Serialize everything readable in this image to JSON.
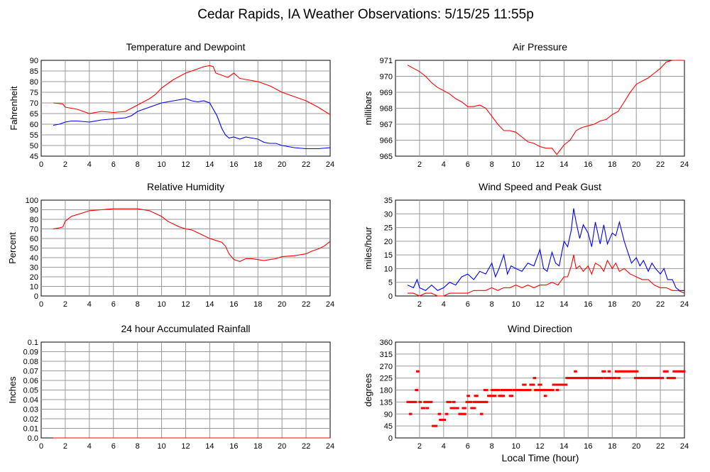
{
  "page_title": "Cedar Rapids, IA Weather Observations: 5/15/25 11:55p",
  "x_axis_label": "Local Time (hour)",
  "x_ticks": [
    "0",
    "2",
    "4",
    "6",
    "8",
    "10",
    "12",
    "14",
    "16",
    "18",
    "20",
    "22",
    "24"
  ],
  "x_ticks_no_zero": [
    "2",
    "4",
    "6",
    "8",
    "10",
    "12",
    "14",
    "16",
    "18",
    "20",
    "22",
    "24"
  ],
  "chart_data": [
    {
      "id": "temp",
      "type": "line",
      "title": "Temperature and Dewpoint",
      "ylabel": "Fahrenheit",
      "xlim": [
        0,
        24
      ],
      "ylim": [
        45,
        90
      ],
      "y_ticks": [
        45,
        50,
        55,
        60,
        65,
        70,
        75,
        80,
        85,
        90
      ],
      "y_tick_labels": [
        "45",
        "50",
        "55",
        "60",
        "65",
        "70",
        "75",
        "80",
        "85",
        "90"
      ],
      "x_labels_from_zero": true,
      "grid": true,
      "series": [
        {
          "color": "#ff0000",
          "x": [
            1,
            1.8,
            2,
            3,
            3.5,
            4,
            5,
            6,
            7,
            7.5,
            8,
            8.5,
            9,
            9.5,
            10,
            10.5,
            11,
            11.5,
            12,
            12.5,
            13,
            13.5,
            14,
            14.3,
            14.5,
            15,
            15.5,
            16,
            16.5,
            17,
            18,
            19,
            20,
            21,
            22,
            23,
            24
          ],
          "y": [
            70,
            69.5,
            68,
            67,
            66,
            65,
            66,
            65.5,
            66,
            67.5,
            69,
            70.5,
            72,
            74,
            77,
            79,
            81,
            82.5,
            84,
            85,
            86,
            87,
            87.5,
            87,
            84,
            83,
            82,
            84,
            81.5,
            81,
            80,
            78,
            75,
            73,
            71,
            68,
            64.5
          ]
        },
        {
          "color": "#0000ff",
          "x": [
            1,
            1.5,
            2,
            2.5,
            3,
            4,
            5,
            6,
            7,
            7.5,
            8,
            8.5,
            9,
            9.5,
            10,
            10.5,
            11,
            11.5,
            12,
            12.5,
            13,
            13.5,
            14,
            14.3,
            14.6,
            15,
            15.3,
            15.6,
            16,
            16.5,
            17,
            17.5,
            18,
            18.5,
            19,
            19.5,
            20,
            21,
            22,
            23,
            24
          ],
          "y": [
            59.5,
            60,
            61,
            61.5,
            61.5,
            61,
            62,
            62.5,
            63,
            64,
            66,
            67,
            68,
            69,
            70,
            70.5,
            71,
            71.5,
            72,
            71,
            70.5,
            71,
            70,
            67,
            64,
            58,
            55,
            53.5,
            54,
            53,
            54,
            53.5,
            53,
            51.5,
            51,
            51,
            50,
            49,
            48.5,
            48.5,
            49
          ]
        }
      ]
    },
    {
      "id": "pressure",
      "type": "line",
      "title": "Air Pressure",
      "ylabel": "millibars",
      "xlim": [
        0,
        24
      ],
      "ylim": [
        965,
        971
      ],
      "y_ticks": [
        965,
        966,
        967,
        968,
        969,
        970,
        971
      ],
      "y_tick_labels": [
        "965",
        "966",
        "967",
        "968",
        "969",
        "970",
        "971"
      ],
      "x_labels_from_zero": false,
      "grid": true,
      "series": [
        {
          "color": "#ff0000",
          "x": [
            1,
            1.5,
            2,
            2.5,
            3,
            3.5,
            4,
            4.5,
            5,
            5.5,
            6,
            6.5,
            7,
            7.5,
            8,
            8.5,
            9,
            9.5,
            10,
            10.5,
            11,
            11.5,
            12,
            12.5,
            13,
            13.4,
            13.7,
            14,
            14.5,
            15,
            15.5,
            16,
            16.5,
            17,
            17.5,
            18,
            18.5,
            19,
            19.5,
            20,
            20.5,
            21,
            21.5,
            22,
            22.5,
            23,
            23.5,
            24
          ],
          "y": [
            970.7,
            970.5,
            970.3,
            970,
            969.6,
            969.3,
            969.1,
            968.9,
            968.6,
            968.4,
            968.1,
            968.1,
            968.2,
            968,
            967.5,
            967,
            966.6,
            966.6,
            966.5,
            966.2,
            965.9,
            965.8,
            965.6,
            965.5,
            965.5,
            965.1,
            965.4,
            965.7,
            966,
            966.6,
            966.8,
            966.9,
            967,
            967.2,
            967.3,
            967.6,
            967.8,
            968.4,
            969,
            969.5,
            969.7,
            969.9,
            970.2,
            970.5,
            970.9,
            971,
            971,
            971
          ]
        }
      ]
    },
    {
      "id": "rh",
      "type": "line",
      "title": "Relative Humidity",
      "ylabel": "Percent",
      "xlim": [
        0,
        24
      ],
      "ylim": [
        0,
        100
      ],
      "y_ticks": [
        0,
        10,
        20,
        30,
        40,
        50,
        60,
        70,
        80,
        90,
        100
      ],
      "y_tick_labels": [
        "0",
        "10",
        "20",
        "30",
        "40",
        "50",
        "60",
        "70",
        "80",
        "90",
        "100"
      ],
      "x_labels_from_zero": true,
      "grid": true,
      "series": [
        {
          "color": "#ff0000",
          "x": [
            1,
            1.5,
            1.8,
            2,
            2.5,
            3,
            3.5,
            4,
            4.5,
            5,
            5.5,
            6,
            7,
            8,
            8.5,
            9,
            9.5,
            10,
            10.5,
            11,
            11.5,
            12,
            12.5,
            13,
            13.5,
            14,
            14.5,
            15,
            15.3,
            15.6,
            16,
            16.5,
            17,
            17.5,
            18,
            18.5,
            19,
            19.5,
            20,
            21,
            22,
            22.5,
            23,
            23.5,
            24
          ],
          "y": [
            70,
            71,
            72,
            78,
            83,
            85,
            87,
            89,
            89.5,
            90,
            90.5,
            91,
            91,
            91,
            90,
            89,
            86,
            83,
            78,
            75,
            72,
            70,
            69,
            66,
            63,
            60,
            58,
            56,
            52,
            44,
            38,
            36,
            39,
            39,
            38,
            37,
            38,
            39,
            41,
            42,
            44,
            47,
            49,
            52,
            57
          ]
        }
      ]
    },
    {
      "id": "wind",
      "type": "line",
      "title": "Wind Speed and Peak Gust",
      "ylabel": "miles/hour",
      "xlim": [
        0,
        24
      ],
      "ylim": [
        0,
        35
      ],
      "y_ticks": [
        0,
        5,
        10,
        15,
        20,
        25,
        30,
        35
      ],
      "y_tick_labels": [
        "0",
        "5",
        "10",
        "15",
        "20",
        "25",
        "30",
        "35"
      ],
      "x_labels_from_zero": false,
      "grid": true,
      "series": [
        {
          "color": "#0000ff",
          "x": [
            1,
            1.5,
            1.8,
            2,
            2.5,
            3,
            3.5,
            4,
            4.5,
            5,
            5.5,
            6,
            6.5,
            7,
            7.5,
            8,
            8.3,
            8.6,
            9,
            9.3,
            9.6,
            10,
            10.5,
            11,
            11.5,
            12,
            12.3,
            12.6,
            13,
            13.3,
            13.6,
            14,
            14.3,
            14.6,
            14.8,
            15,
            15.3,
            15.6,
            16,
            16.3,
            16.6,
            17,
            17.3,
            17.6,
            18,
            18.3,
            18.6,
            19,
            19.3,
            19.6,
            20,
            20.3,
            20.6,
            21,
            21.3,
            21.6,
            22,
            22.3,
            22.6,
            23,
            23.3,
            23.6,
            24
          ],
          "y": [
            4,
            3,
            6,
            3,
            2,
            4,
            2,
            3,
            5,
            4,
            7,
            8,
            6,
            9,
            8,
            12,
            7,
            10,
            15,
            8,
            11,
            10,
            9,
            12,
            11,
            17,
            10,
            9,
            16,
            12,
            11,
            20,
            18,
            24,
            32,
            27,
            21,
            26,
            23,
            18,
            27,
            19,
            26,
            19,
            23,
            22,
            27,
            20,
            16,
            12,
            14,
            11,
            13,
            9,
            12,
            10,
            8,
            10,
            6,
            6,
            3,
            2,
            2
          ]
        },
        {
          "color": "#ff0000",
          "x": [
            1,
            1.5,
            2,
            2.5,
            3,
            3.5,
            4,
            4.5,
            5,
            5.5,
            6,
            6.5,
            7,
            7.5,
            8,
            8.5,
            9,
            9.5,
            10,
            10.5,
            11,
            11.5,
            12,
            12.5,
            13,
            13.5,
            14,
            14.3,
            14.6,
            14.8,
            15,
            15.3,
            15.6,
            16,
            16.3,
            16.6,
            17,
            17.3,
            17.6,
            18,
            18.3,
            18.6,
            19,
            19.5,
            20,
            20.5,
            21,
            21.5,
            22,
            22.5,
            23,
            23.5,
            24
          ],
          "y": [
            1,
            1,
            0,
            1,
            1,
            0,
            0,
            1,
            1,
            1,
            1,
            2,
            2,
            2,
            3,
            2,
            3,
            3,
            4,
            3,
            4,
            3,
            4,
            4,
            5,
            4,
            7,
            7,
            11,
            15,
            10,
            11,
            9,
            11,
            8,
            12,
            11,
            9,
            13,
            10,
            12,
            9,
            10,
            8,
            7,
            6,
            6,
            4,
            3,
            3,
            2,
            2,
            1
          ]
        }
      ]
    },
    {
      "id": "rain",
      "type": "line",
      "title": "24 hour Accumulated Rainfall",
      "ylabel": "Inches",
      "xlim": [
        0,
        24
      ],
      "ylim": [
        0,
        0.1
      ],
      "y_ticks": [
        0,
        0.01,
        0.02,
        0.03,
        0.04,
        0.05,
        0.06,
        0.07,
        0.08,
        0.09,
        0.1
      ],
      "y_tick_labels": [
        "0.0",
        "0.01",
        "0.02",
        "0.03",
        "0.04",
        "0.05",
        "0.06",
        "0.07",
        "0.08",
        "0.09",
        "0.1"
      ],
      "x_labels_from_zero": true,
      "grid": true,
      "series": [
        {
          "color": "#ff0000",
          "x": [
            1,
            24
          ],
          "y": [
            0,
            0
          ]
        }
      ]
    },
    {
      "id": "direction",
      "type": "scatter",
      "title": "Wind Direction",
      "ylabel": "degrees",
      "xlim": [
        0,
        24
      ],
      "ylim": [
        0,
        360
      ],
      "y_ticks": [
        0,
        45,
        90,
        135,
        180,
        225,
        270,
        315,
        360
      ],
      "y_tick_labels": [
        "0",
        "45",
        "90",
        "135",
        "180",
        "225",
        "270",
        "315",
        "360"
      ],
      "x_labels_from_zero": false,
      "grid": true,
      "color": "#ff0000",
      "segments": [
        [
          1.0,
          1.3,
          135
        ],
        [
          1.2,
          1.3,
          90
        ],
        [
          1.4,
          1.7,
          135
        ],
        [
          1.7,
          1.8,
          180
        ],
        [
          1.8,
          1.95,
          250
        ],
        [
          2.0,
          2.1,
          135
        ],
        [
          2.2,
          2.4,
          112
        ],
        [
          2.4,
          3.0,
          135
        ],
        [
          2.6,
          2.7,
          112
        ],
        [
          3.1,
          3.4,
          45
        ],
        [
          3.6,
          3.7,
          90
        ],
        [
          3.7,
          4.1,
          68
        ],
        [
          4.2,
          4.3,
          90
        ],
        [
          4.3,
          4.6,
          135
        ],
        [
          4.6,
          5.2,
          112
        ],
        [
          4.8,
          4.9,
          135
        ],
        [
          5.3,
          5.8,
          90
        ],
        [
          5.6,
          5.8,
          112
        ],
        [
          5.9,
          6.3,
          135
        ],
        [
          6.0,
          6.1,
          158
        ],
        [
          6.3,
          6.6,
          112
        ],
        [
          6.5,
          7.2,
          135
        ],
        [
          6.6,
          6.8,
          158
        ],
        [
          7.1,
          7.2,
          90
        ],
        [
          7.3,
          7.6,
          135
        ],
        [
          7.4,
          7.6,
          180
        ],
        [
          7.7,
          8.3,
          158
        ],
        [
          8.0,
          8.6,
          180
        ],
        [
          8.6,
          9.0,
          158
        ],
        [
          8.8,
          9.6,
          180
        ],
        [
          9.5,
          9.7,
          158
        ],
        [
          9.8,
          11.2,
          180
        ],
        [
          10.6,
          10.8,
          200
        ],
        [
          11.2,
          11.5,
          200
        ],
        [
          11.5,
          11.6,
          225
        ],
        [
          11.6,
          12.4,
          180
        ],
        [
          11.9,
          12.1,
          200
        ],
        [
          12.4,
          12.5,
          158
        ],
        [
          12.5,
          13.1,
          180
        ],
        [
          13.1,
          13.4,
          200
        ],
        [
          13.4,
          13.5,
          180
        ],
        [
          13.5,
          14.2,
          200
        ],
        [
          14.2,
          17.2,
          225
        ],
        [
          14.9,
          15.0,
          250
        ],
        [
          17.2,
          17.4,
          250
        ],
        [
          17.4,
          18.3,
          225
        ],
        [
          17.7,
          17.8,
          250
        ],
        [
          18.3,
          19.9,
          250
        ],
        [
          18.5,
          18.6,
          225
        ],
        [
          19.9,
          22.0,
          225
        ],
        [
          20.0,
          20.1,
          250
        ],
        [
          22.0,
          22.2,
          225
        ],
        [
          22.3,
          22.6,
          250
        ],
        [
          22.6,
          23.2,
          225
        ],
        [
          23.1,
          24.0,
          250
        ]
      ]
    }
  ]
}
